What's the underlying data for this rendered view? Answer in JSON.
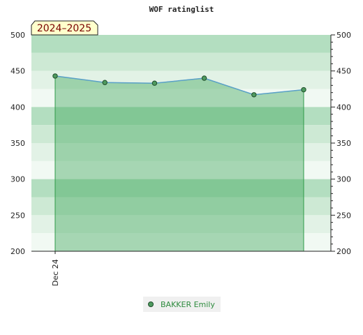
{
  "chart_data": {
    "type": "area",
    "title": "WOF ratinglist",
    "season_label": "2024–2025",
    "x_tick_labels": [
      "Dec 24"
    ],
    "ylim": [
      200,
      500
    ],
    "y_ticks": [
      200,
      250,
      300,
      350,
      400,
      450,
      500
    ],
    "y_ticks_right": [
      200,
      250,
      300,
      350,
      400,
      450,
      500
    ],
    "grid": false,
    "legend_position": "bottom-center",
    "series": [
      {
        "name": "BAKKER Emily",
        "values": [
          443,
          434,
          433,
          440,
          417,
          424
        ]
      }
    ],
    "colors": {
      "line": "#5aa0c8",
      "fill": "#3da85a",
      "marker": "#4f9a5f",
      "band_dark": "#a8d9b3",
      "band_light": "#e8f5ea",
      "season_box": "#ffffcc",
      "legend_text": "#2e8b3e"
    }
  }
}
